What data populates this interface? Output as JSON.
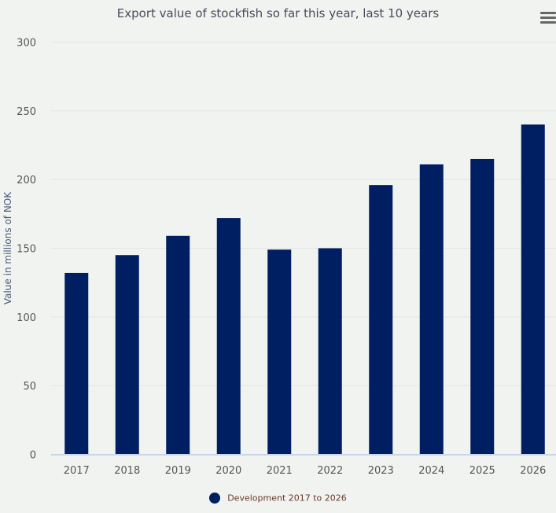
{
  "chart_data": {
    "type": "bar",
    "title": "Export value of stockfish so far this year, last 10 years",
    "xlabel": "",
    "ylabel": "Value in millions of NOK",
    "ylim": [
      0,
      300
    ],
    "yticks": [
      0,
      50,
      100,
      150,
      200,
      250,
      300
    ],
    "grid": true,
    "legend_position": "bottom",
    "categories": [
      "2017",
      "2018",
      "2019",
      "2020",
      "2021",
      "2022",
      "2023",
      "2024",
      "2025",
      "2026"
    ],
    "series": [
      {
        "name": "Development 2017 to 2026",
        "color": "#001e62",
        "values": [
          132,
          145,
          159,
          172,
          149,
          150,
          196,
          211,
          215,
          240
        ]
      }
    ]
  },
  "menu_icon": "hamburger-menu-icon"
}
